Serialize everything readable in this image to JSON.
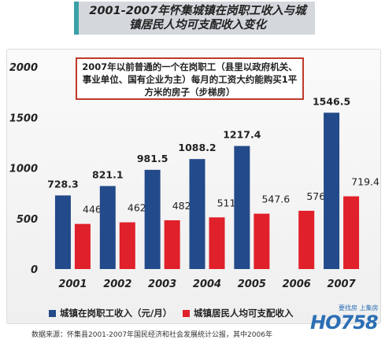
{
  "header": {
    "title": "2001-2007年怀集城镇在岗职工收入与城镇居民人均可支配收入变化"
  },
  "annotation": {
    "text": "2007年以前普通的一个在岗职工（县里以政府机关、事业单位、国有企业为主）每月的工资大约能购买1平方米的房子（步梯房）"
  },
  "legend": {
    "series1": "城镇在岗职工收入（元/月）",
    "series2": "城镇居民人均可支配收入"
  },
  "source": {
    "text": "数据来源：怀集县2001-2007年国民经济和社会发展统计公报，其中2006年"
  },
  "logo": {
    "subtitle": "要找房 上集房",
    "mark": "HO758"
  },
  "colors": {
    "series1": "#234a8a",
    "series2": "#e0202a",
    "title_accent": "#3aa0a8",
    "note_border": "#c0392b"
  },
  "chart_data": {
    "type": "bar",
    "categories": [
      "2001",
      "2002",
      "2003",
      "2004",
      "2005",
      "2006",
      "2007"
    ],
    "series": [
      {
        "name": "城镇在岗职工收入（元/月）",
        "values": [
          728.3,
          821.1,
          981.5,
          1088.2,
          1217.4,
          null,
          1546.5
        ],
        "labels": [
          "728.3",
          "821.1",
          "981.5",
          "1088.2",
          "1217.4",
          "",
          "1546.5"
        ]
      },
      {
        "name": "城镇居民人均可支配收入",
        "values": [
          446.4,
          462.3,
          482.6,
          511.3,
          547.6,
          576.5,
          719.4
        ],
        "labels": [
          "446.4",
          "462.3",
          "482.6",
          "511.3",
          "547.6",
          "576.5",
          "719.4"
        ]
      }
    ],
    "ylim": [
      0,
      2000
    ],
    "yticks": [
      "0",
      "500",
      "1000",
      "1500",
      "2000"
    ],
    "ytick_values": [
      0,
      500,
      1000,
      1500,
      2000
    ],
    "grid": false,
    "legend_position": "bottom"
  }
}
